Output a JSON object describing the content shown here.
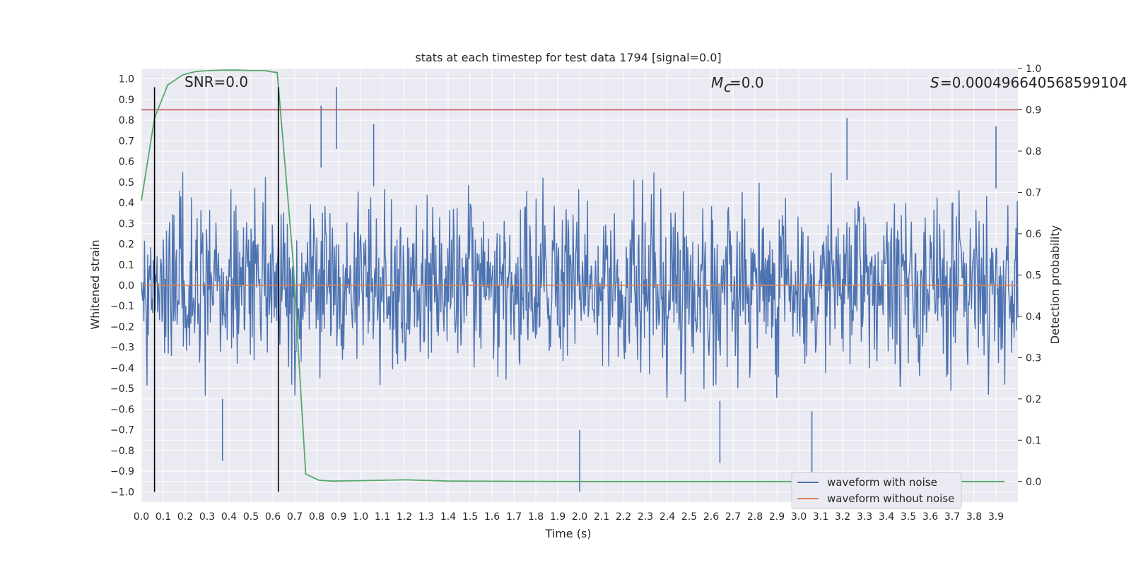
{
  "chart_data": {
    "type": "line",
    "title": "stats at each timestep for test data 1794 [signal=0.0]",
    "xlabel": "Time (s)",
    "ylabel": "Whitened strain",
    "ylabel_right": "Detection probability",
    "xlim": [
      0.0,
      4.0
    ],
    "ylim": [
      -1.05,
      1.05
    ],
    "ylim_right": [
      -0.05,
      1.0
    ],
    "x_ticks": [
      "0.0",
      "0.1",
      "0.2",
      "0.3",
      "0.4",
      "0.5",
      "0.6",
      "0.7",
      "0.8",
      "0.9",
      "1.0",
      "1.1",
      "1.2",
      "1.3",
      "1.4",
      "1.5",
      "1.6",
      "1.7",
      "1.8",
      "1.9",
      "2.0",
      "2.1",
      "2.2",
      "2.3",
      "2.4",
      "2.5",
      "2.6",
      "2.7",
      "2.8",
      "2.9",
      "3.0",
      "3.1",
      "3.2",
      "3.3",
      "3.4",
      "3.5",
      "3.6",
      "3.7",
      "3.8",
      "3.9"
    ],
    "y_ticks": [
      "1.0",
      "0.9",
      "0.8",
      "0.7",
      "0.6",
      "0.5",
      "0.4",
      "0.3",
      "0.2",
      "0.1",
      "0.0",
      "−0.1",
      "−0.2",
      "−0.3",
      "−0.4",
      "−0.5",
      "−0.6",
      "−0.7",
      "−0.8",
      "−0.9",
      "−1.0"
    ],
    "y_ticks_right": [
      "1.0",
      "0.9",
      "0.8",
      "0.7",
      "0.6",
      "0.5",
      "0.4",
      "0.3",
      "0.2",
      "0.1",
      "0.0"
    ],
    "grid": true,
    "legend_position": "bottom-right",
    "annotations": {
      "snr": "SNR=0.0",
      "mc": "=0.0",
      "s": "=0.000496640568599104"
    },
    "series": [
      {
        "name": "waveform with noise",
        "color": "#4c72b0",
        "axis": "left",
        "description_values": {
          "typical_amplitude": 0.35,
          "peaks": [
            [
              0.89,
              0.96
            ],
            [
              0.82,
              0.87
            ],
            [
              1.06,
              0.78
            ],
            [
              3.22,
              0.81
            ],
            [
              3.9,
              0.77
            ],
            [
              2.0,
              -1.0
            ],
            [
              3.06,
              -0.91
            ],
            [
              0.37,
              -0.85
            ],
            [
              2.64,
              -0.86
            ]
          ]
        }
      },
      {
        "name": "waveform without noise",
        "color": "#dd8452",
        "axis": "left",
        "values_constant": 0.0
      },
      {
        "name": "Detection probability",
        "color": "#55a868",
        "axis": "right",
        "x": [
          0.0,
          0.06,
          0.12,
          0.19,
          0.25,
          0.31,
          0.37,
          0.44,
          0.5,
          0.56,
          0.62,
          0.69,
          0.75,
          0.81,
          0.87,
          1.0,
          1.2,
          1.4,
          2.0,
          3.0,
          3.94
        ],
        "y": [
          0.68,
          0.88,
          0.96,
          0.985,
          0.993,
          0.995,
          0.996,
          0.996,
          0.995,
          0.995,
          0.99,
          0.55,
          0.018,
          0.003,
          0.001,
          0.002,
          0.004,
          0.001,
          0.0,
          0.0,
          0.0
        ]
      }
    ],
    "threshold_line": {
      "axis": "right",
      "value": 0.9,
      "color": "#c44e52"
    },
    "vertical_markers": {
      "x": [
        0.06,
        0.625
      ],
      "y_range": [
        -1.0,
        0.96
      ],
      "color": "#000000"
    }
  }
}
